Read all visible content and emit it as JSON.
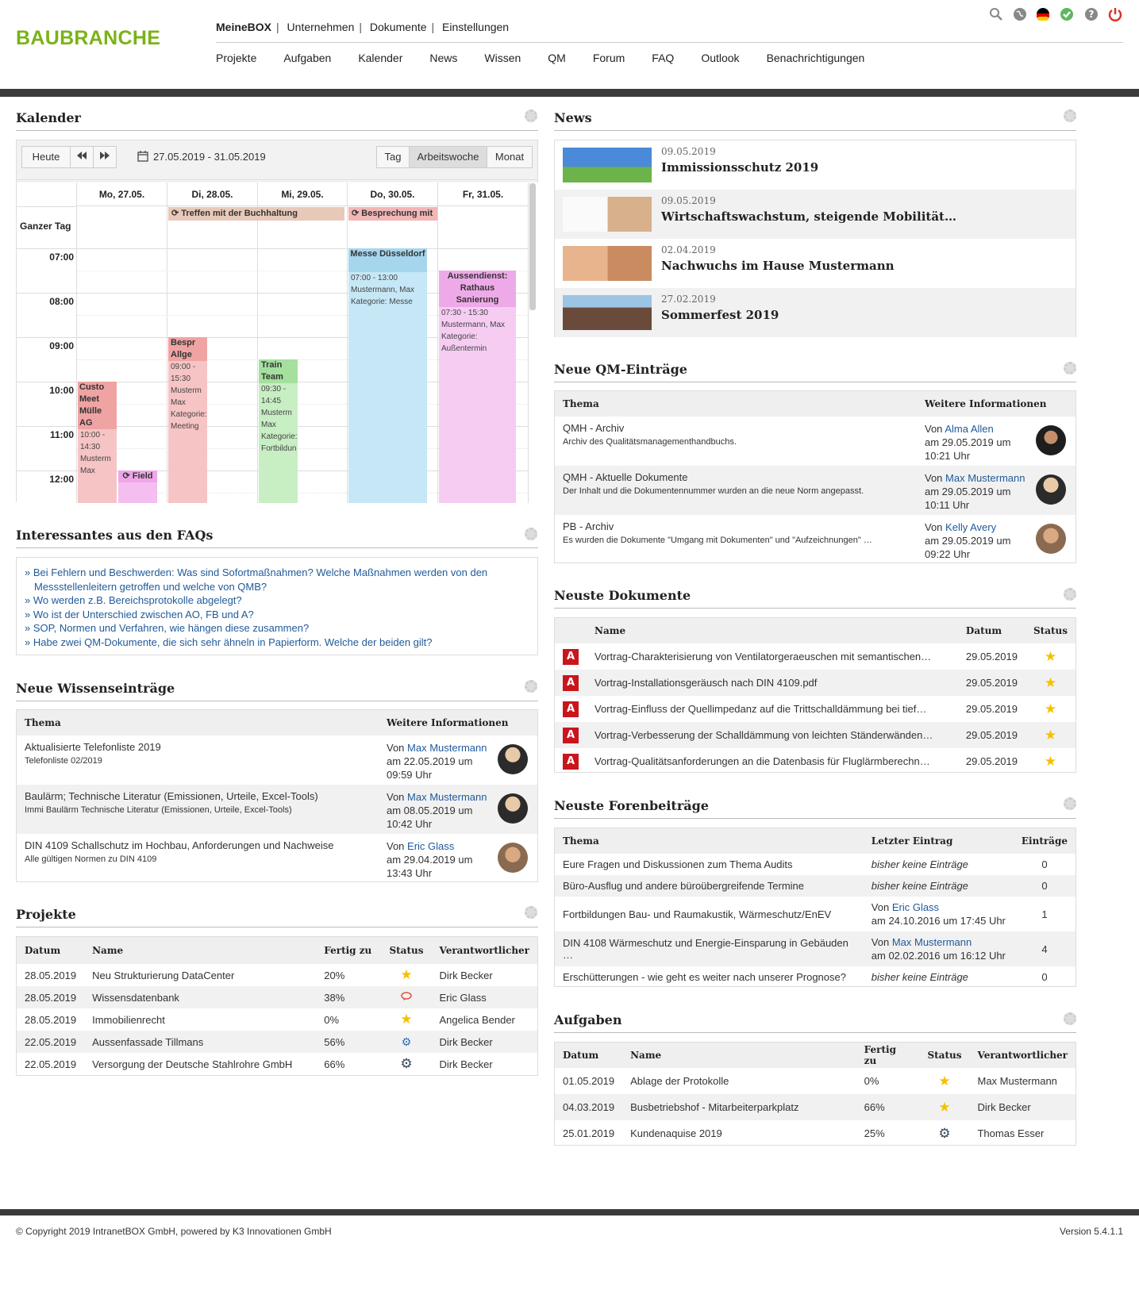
{
  "brand": "BAUBRANCHE",
  "topnav": [
    "MeineBOX",
    "Unternehmen",
    "Dokumente",
    "Einstellungen"
  ],
  "mainnav": [
    "Projekte",
    "Aufgaben",
    "Kalender",
    "News",
    "Wissen",
    "QM",
    "Forum",
    "FAQ",
    "Outlook",
    "Benachrichtigungen"
  ],
  "header_icons": [
    "search-icon",
    "globe-icon",
    "flag-de-icon",
    "status-ok-icon",
    "help-icon",
    "power-icon"
  ],
  "kalender": {
    "title": "Kalender",
    "today": "Heute",
    "prev": "◀◀",
    "next": "▶▶",
    "range": "27.05.2019 - 31.05.2019",
    "views": [
      "Tag",
      "Arbeitswoche",
      "Monat"
    ],
    "days": [
      "Mo, 27.05.",
      "Di, 28.05.",
      "Mi, 29.05.",
      "Do, 30.05.",
      "Fr, 31.05."
    ],
    "all_day_label": "Ganzer Tag",
    "times": [
      "07:00",
      "08:00",
      "09:00",
      "10:00",
      "11:00",
      "12:00"
    ],
    "allday_events": [
      {
        "title": "Treffen mit der Buchhaltung",
        "color": "#e8c9b9"
      },
      {
        "title": "Besprechung mit",
        "color": "#f2b6b6"
      }
    ],
    "events": {
      "mon1": {
        "title": "Custo Meet Mülle AG",
        "time": "10:00 - 14:30",
        "who": "Musterm Max"
      },
      "mon2": {
        "title": "Field"
      },
      "tue": {
        "title": "Bespr Allge",
        "time": "09:00 - 15:30",
        "who": "Musterm Max",
        "cat": "Kategorie:",
        "catv": "Meeting"
      },
      "wed": {
        "title": "Train Team",
        "time": "09:30 - 14:45",
        "who": "Musterm Max",
        "cat": "Kategorie:",
        "catv": "Fortbildun"
      },
      "thu": {
        "title": "Messe Düsseldorf",
        "time": "07:00 - 13:00",
        "who": "Mustermann, Max",
        "cat": "Kategorie: Messe"
      },
      "fri": {
        "title": "Aussendienst: Rathaus Sanierung",
        "time": "07:30 - 15:30",
        "who": "Mustermann, Max",
        "cat": "Kategorie:",
        "catv": "Außentermin"
      }
    }
  },
  "news": {
    "title": "News",
    "items": [
      {
        "date": "09.05.2019",
        "title": "Immissionsschutz 2019"
      },
      {
        "date": "09.05.2019",
        "title": "Wirtschaftswachstum, steigende Mobilität…"
      },
      {
        "date": "02.04.2019",
        "title": "Nachwuchs im Hause Mustermann"
      },
      {
        "date": "27.02.2019",
        "title": "Sommerfest 2019"
      }
    ]
  },
  "faq": {
    "title": "Interessantes aus den FAQs",
    "items": [
      "Bei Fehlern und Beschwerden: Was sind Sofortmaßnahmen? Welche Maßnahmen werden von den Messstellenleitern getroffen und welche von QMB?",
      "Wo werden z.B. Bereichsprotokolle abgelegt?",
      "Wo ist der Unterschied zwischen AO, FB und A?",
      "SOP, Normen und Verfahren, wie hängen diese zusammen?",
      "Habe zwei QM-Dokumente, die sich sehr ähneln in Papierform. Welche der beiden gilt?"
    ]
  },
  "qm": {
    "title": "Neue QM-Einträge",
    "cols": [
      "Thema",
      "Weitere Informationen"
    ],
    "rows": [
      {
        "thema": "QMH - Archiv",
        "sub": "Archiv des Qualitätsmanagementhandbuchs.",
        "von": "Von",
        "user": "Alma Allen",
        "am": "am 29.05.2019 um",
        "uhr": "10:21 Uhr",
        "avatar": "#7a5a4a"
      },
      {
        "thema": "QMH - Aktuelle Dokumente",
        "sub": "Der Inhalt und die Dokumentennummer wurden an die neue Norm angepasst.",
        "von": "Von",
        "user": "Max Mustermann",
        "am": "am 29.05.2019 um",
        "uhr": "10:11 Uhr",
        "avatar": "#c9a47e"
      },
      {
        "thema": "PB - Archiv",
        "sub": "Es wurden die Dokumente \"Umgang mit Dokumenten\" und \"Aufzeichnungen\" …",
        "von": "Von",
        "user": "Kelly Avery",
        "am": "am 29.05.2019 um",
        "uhr": "09:22 Uhr",
        "avatar": "#b08a6a"
      }
    ]
  },
  "wissen": {
    "title": "Neue Wissenseinträge",
    "cols": [
      "Thema",
      "Weitere Informationen"
    ],
    "rows": [
      {
        "thema": "Aktualisierte Telefonliste 2019",
        "sub": "Telefonliste 02/2019",
        "von": "Von",
        "user": "Max Mustermann",
        "am": "am 22.05.2019 um",
        "uhr": "09:59 Uhr",
        "avatar": "#c9a47e"
      },
      {
        "thema": "Baulärm; Technische Literatur (Emissionen, Urteile, Excel-Tools)",
        "sub": "Immi Baulärm Technische Literatur (Emissionen, Urteile, Excel-Tools)",
        "von": "Von",
        "user": "Max Mustermann",
        "am": "am 08.05.2019 um",
        "uhr": "10:42 Uhr",
        "avatar": "#c9a47e"
      },
      {
        "thema": "DIN 4109 Schallschutz im Hochbau, Anforderungen und Nachweise",
        "sub": "Alle gültigen Normen zu DIN 4109",
        "von": "Von",
        "user": "Eric Glass",
        "am": "am 29.04.2019 um",
        "uhr": "13:43 Uhr",
        "avatar": "#b08a6a"
      }
    ]
  },
  "dokumente": {
    "title": "Neuste Dokumente",
    "cols": [
      "Name",
      "Datum",
      "Status"
    ],
    "rows": [
      {
        "name": "Vortrag-Charakterisierung von Ventilatorgeraeuschen mit semantischen…",
        "datum": "29.05.2019"
      },
      {
        "name": "Vortrag-Installationsgeräusch nach DIN 4109.pdf",
        "datum": "29.05.2019"
      },
      {
        "name": "Vortrag-Einfluss der Quellimpedanz auf die Trittschalldämmung bei tief…",
        "datum": "29.05.2019"
      },
      {
        "name": "Vortrag-Verbesserung der Schalldämmung von leichten Ständerwänden…",
        "datum": "29.05.2019"
      },
      {
        "name": "Vortrag-Qualitätsanforderungen an die Datenbasis für Fluglärmberechn…",
        "datum": "29.05.2019"
      }
    ]
  },
  "projekte": {
    "title": "Projekte",
    "cols": [
      "Datum",
      "Name",
      "Fertig zu",
      "Status",
      "Verantwortlicher"
    ],
    "rows": [
      {
        "datum": "28.05.2019",
        "name": "Neu Strukturierung DataCenter",
        "fertig": "20%",
        "status": "star-icon",
        "glyph": "★",
        "color": "#f5c000",
        "verantw": "Dirk Becker"
      },
      {
        "datum": "28.05.2019",
        "name": "Wissensdatenbank",
        "fertig": "38%",
        "status": "comment-icon",
        "glyph": "💬",
        "color": "#d9533b",
        "verantw": "Eric Glass"
      },
      {
        "datum": "28.05.2019",
        "name": "Immobilienrecht",
        "fertig": "0%",
        "status": "star-icon",
        "glyph": "★",
        "color": "#f5c000",
        "verantw": "Angelica Bender"
      },
      {
        "datum": "22.05.2019",
        "name": "Aussenfassade Tillmans",
        "fertig": "56%",
        "status": "gears-icon",
        "glyph": "⚙",
        "color": "#2f6fb5",
        "verantw": "Dirk Becker"
      },
      {
        "datum": "22.05.2019",
        "name": "Versorgung der Deutsche Stahlrohre GmbH",
        "fertig": "66%",
        "status": "gear-icon",
        "glyph": "⚙",
        "color": "#3b4b5b",
        "verantw": "Dirk Becker"
      }
    ]
  },
  "forum": {
    "title": "Neuste Forenbeiträge",
    "cols": [
      "Thema",
      "Letzter Eintrag",
      "Einträge"
    ],
    "rows": [
      {
        "thema": "Eure Fragen und Diskussionen zum Thema Audits",
        "letzter": "bisher keine Einträge",
        "count": "0"
      },
      {
        "thema": "Büro-Ausflug und andere büroübergreifende Termine",
        "letzter": "bisher keine Einträge",
        "count": "0"
      },
      {
        "thema": "Fortbildungen Bau- und Raumakustik, Wärmeschutz/EnEV",
        "von": "Von",
        "user": "Eric Glass",
        "am": "am 24.10.2016 um 17:45 Uhr",
        "count": "1"
      },
      {
        "thema": "DIN 4108 Wärmeschutz und Energie-Einsparung in Gebäuden …",
        "von": "Von",
        "user": "Max Mustermann",
        "am": "am 02.02.2016 um 16:12 Uhr",
        "count": "4"
      },
      {
        "thema": "Erschütterungen - wie geht es weiter nach unserer Prognose?",
        "letzter": "bisher keine Einträge",
        "count": "0"
      }
    ]
  },
  "aufgaben": {
    "title": "Aufgaben",
    "cols": [
      "Datum",
      "Name",
      "Fertig zu",
      "Status",
      "Verantwortlicher"
    ],
    "rows": [
      {
        "datum": "01.05.2019",
        "name": "Ablage der Protokolle",
        "fertig": "0%",
        "status": "star-icon",
        "glyph": "★",
        "color": "#f5c000",
        "verantw": "Max Mustermann"
      },
      {
        "datum": "04.03.2019",
        "name": "Busbetriebshof - Mitarbeiterparkplatz",
        "fertig": "66%",
        "status": "star-icon",
        "glyph": "★",
        "color": "#f5c000",
        "verantw": "Dirk Becker"
      },
      {
        "datum": "25.01.2019",
        "name": "Kundenaquise 2019",
        "fertig": "25%",
        "status": "gear-icon",
        "glyph": "⚙",
        "color": "#3b4b5b",
        "verantw": "Thomas Esser"
      }
    ]
  },
  "footer": {
    "copyright": "© Copyright 2019 IntranetBOX GmbH, powered by K3 Innovationen GmbH",
    "version": "Version 5.4.1.1"
  }
}
